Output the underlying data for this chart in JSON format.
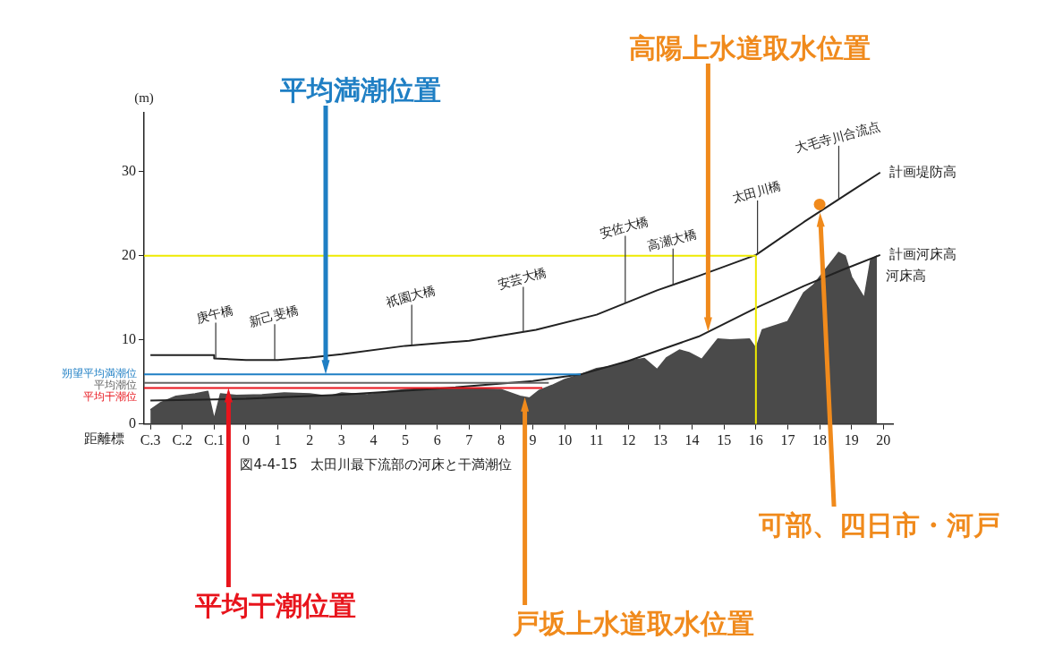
{
  "chart_data": {
    "type": "line",
    "title": "図4-4-15　太田川最下流部の河床と干満潮位",
    "xlabel": "距離標",
    "ylabel": "(m)",
    "xlim": [
      -3.2,
      20.3
    ],
    "xticks": [
      {
        "value": -3,
        "label": "C.3"
      },
      {
        "value": -2,
        "label": "C.2"
      },
      {
        "value": -1,
        "label": "C.1"
      },
      0,
      1,
      2,
      3,
      4,
      5,
      6,
      7,
      8,
      9,
      10,
      11,
      12,
      13,
      14,
      15,
      16,
      17,
      18,
      19,
      20
    ],
    "ylim": [
      0,
      37
    ],
    "yticks": [
      0,
      10,
      20,
      30
    ],
    "series": [
      {
        "name": "河床高",
        "type": "area",
        "color": "#4a4a4a",
        "x": [
          -3,
          -2.7,
          -2.2,
          -1.6,
          -1.2,
          -1.0,
          -0.8,
          -0.3,
          0.5,
          1.2,
          2,
          2.6,
          3,
          3.8,
          4.5,
          5,
          6,
          7,
          8,
          8.6,
          8.9,
          9.2,
          9.6,
          10,
          10.5,
          11,
          11.5,
          12,
          12.5,
          12.9,
          13.2,
          13.6,
          13.9,
          14.3,
          14.8,
          15.2,
          15.8,
          16,
          16.2,
          17,
          17.5,
          17.8,
          18.6,
          18.8,
          19,
          19.4,
          19.6,
          19.8
        ],
        "values": [
          1.7,
          2.5,
          3.3,
          3.6,
          3.9,
          0.6,
          3.6,
          3.4,
          3.5,
          3.7,
          3.6,
          3.3,
          3.7,
          3.5,
          3.9,
          4.1,
          4.3,
          4.2,
          4.1,
          3.3,
          3.1,
          4.0,
          4.6,
          5.3,
          5.9,
          6.6,
          6.9,
          7.5,
          7.8,
          6.5,
          7.9,
          8.8,
          8.5,
          7.7,
          10.1,
          10.0,
          10.1,
          9.0,
          11.2,
          12.2,
          15.6,
          16.5,
          20.4,
          20.0,
          17.5,
          15.0,
          19.5,
          20.0
        ]
      },
      {
        "name": "計画河床高",
        "color": "#222222",
        "x": [
          -3,
          0,
          3,
          6,
          9,
          10.5,
          12,
          14.2,
          16,
          17.5,
          18.7,
          19.9
        ],
        "values": [
          2.8,
          3.0,
          3.5,
          4.2,
          5.1,
          5.9,
          7.5,
          10.4,
          13.8,
          16.4,
          18.3,
          20.1
        ]
      },
      {
        "name": "計画堤防高",
        "color": "#222222",
        "x": [
          -3,
          -1,
          -1,
          0,
          1,
          2,
          3,
          5,
          7,
          9.1,
          11,
          12.9,
          14.2,
          16,
          17.5,
          19,
          19.9
        ],
        "values": [
          8.2,
          8.2,
          7.8,
          7.6,
          7.6,
          7.9,
          8.3,
          9.3,
          9.9,
          11.2,
          13.0,
          15.9,
          17.6,
          20.1,
          24.0,
          27.7,
          29.9
        ]
      },
      {
        "name": "朔望平均満潮位",
        "color": "#1f7fc4",
        "x": [
          -3.2,
          10.5
        ],
        "values": [
          5.9,
          5.9
        ]
      },
      {
        "name": "平均潮位",
        "color": "#666666",
        "x": [
          -3.2,
          9.5
        ],
        "values": [
          4.9,
          4.9
        ]
      },
      {
        "name": "平均干潮位",
        "color": "#e8141c",
        "x": [
          -3.2,
          9.3
        ],
        "values": [
          4.3,
          4.3
        ]
      },
      {
        "color": "#eeea00",
        "x": [
          -3.2,
          16
        ],
        "values": [
          20,
          20
        ]
      },
      {
        "color": "#eeea00",
        "x": [
          16,
          16
        ],
        "values": [
          0,
          20
        ]
      },
      {
        "type": "scatter",
        "color": "#f08a1c",
        "x": [
          18
        ],
        "values": [
          26.1
        ]
      }
    ],
    "annotations": [
      "平均満潮位置",
      "平均干潮位置",
      "高陽上水道取水位置",
      "戸坂上水道取水位置",
      "可部、四日市・河戸",
      {
        "text": "庚午橋",
        "x": -0.95,
        "y": 7.8
      },
      {
        "text": "新己斐橋",
        "x": 0.9,
        "y": 7.6
      },
      {
        "text": "祇園大橋",
        "x": 5.2,
        "y": 9.4
      },
      {
        "text": "安芸大橋",
        "x": 8.7,
        "y": 11.0
      },
      {
        "text": "安佐大橋",
        "x": 11.9,
        "y": 14.4
      },
      {
        "text": "高瀬大橋",
        "x": 13.4,
        "y": 16.6
      },
      {
        "text": "太田川橋",
        "x": 16.05,
        "y": 20.2
      },
      {
        "text": "大毛寺川合流点",
        "x": 18.6,
        "y": 26.7
      }
    ]
  }
}
